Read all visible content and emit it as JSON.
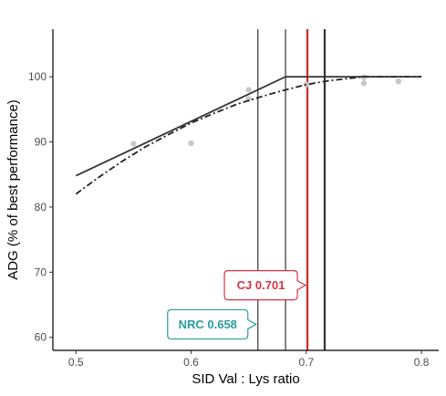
{
  "chart_data": {
    "type": "scatter",
    "xlabel": "SID Val : Lys ratio",
    "ylabel": "ADG (% of best performance)",
    "xlim": [
      0.48,
      0.815
    ],
    "ylim": [
      58.0,
      107.3
    ],
    "x_ticks": [
      0.5,
      0.6,
      0.7,
      0.8
    ],
    "x_tick_labels": [
      "0.5",
      "0.6",
      "0.7",
      "0.8"
    ],
    "y_ticks": [
      60,
      70,
      80,
      90,
      100
    ],
    "y_tick_labels": [
      "60",
      "70",
      "80",
      "90",
      "100"
    ],
    "grid": false,
    "points": [
      {
        "x": 0.55,
        "y": 89.7
      },
      {
        "x": 0.6,
        "y": 89.8
      },
      {
        "x": 0.65,
        "y": 96.6
      },
      {
        "x": 0.65,
        "y": 98.0
      },
      {
        "x": 0.7,
        "y": 98.8
      },
      {
        "x": 0.75,
        "y": 99.9
      },
      {
        "x": 0.75,
        "y": 99.0
      },
      {
        "x": 0.78,
        "y": 99.3
      }
    ],
    "fits": [
      {
        "style": "solid",
        "color": "#333333",
        "x": [
          0.5,
          0.682,
          0.8
        ],
        "y": [
          84.8,
          100.0,
          100.0
        ]
      },
      {
        "style": "dashed",
        "color": "#222222",
        "x": [
          0.5,
          0.52,
          0.54,
          0.56,
          0.58,
          0.6,
          0.62,
          0.64,
          0.66,
          0.68,
          0.7,
          0.72,
          0.75,
          0.8
        ],
        "y": [
          82.0,
          84.6,
          87.0,
          89.2,
          91.1,
          92.9,
          94.4,
          95.8,
          96.9,
          97.9,
          98.8,
          99.4,
          100.0,
          100.0
        ]
      }
    ],
    "vlines": [
      {
        "x": 0.658,
        "color": "#333333",
        "width": 1.2
      },
      {
        "x": 0.682,
        "color": "#333333",
        "width": 1.2
      },
      {
        "x": 0.716,
        "color": "#333333",
        "width": 2.2
      },
      {
        "x": 0.701,
        "color": "#d62728",
        "width": 2.2
      }
    ],
    "annotations": [
      {
        "label": "CJ 0.701",
        "color": "#d63344",
        "x": 0.701,
        "y": 68.0
      },
      {
        "label": "NRC 0.658",
        "color": "#2a9d9a",
        "x": 0.658,
        "y": 62.0
      }
    ]
  }
}
